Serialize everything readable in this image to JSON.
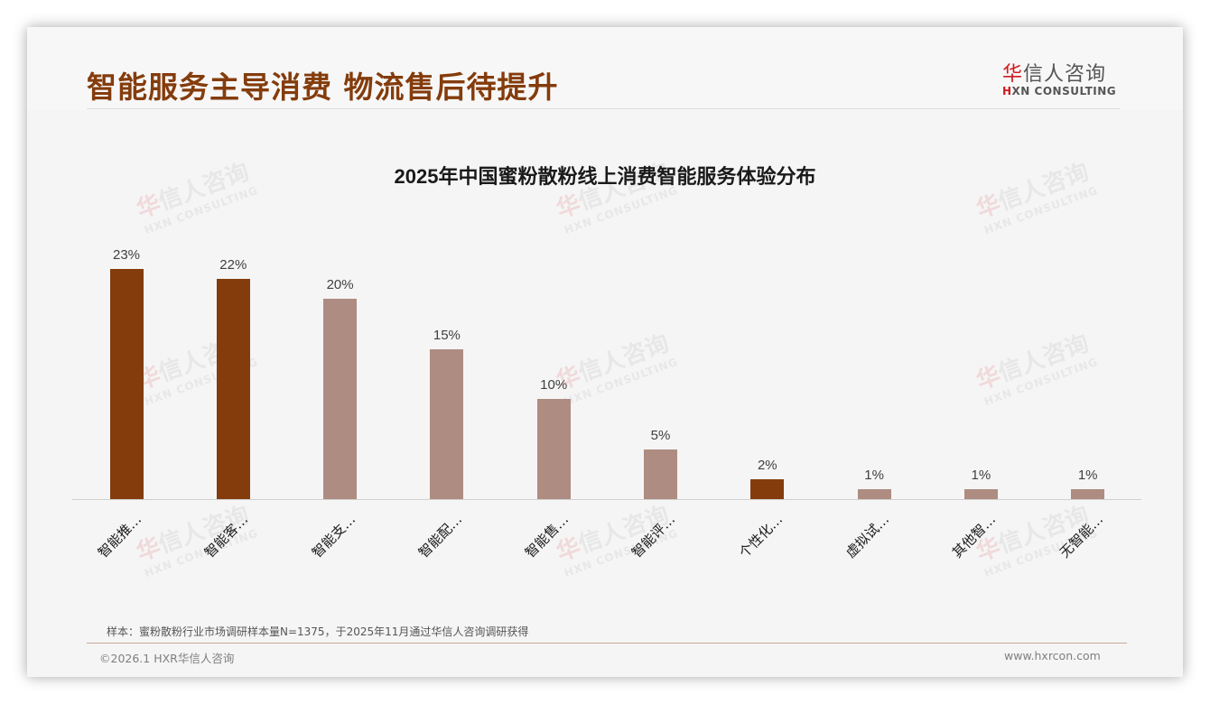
{
  "header": {
    "title": "智能服务主导消费 物流售后待提升",
    "logo_cn_first": "华",
    "logo_cn_rest": "信人咨询",
    "logo_en_first": "H",
    "logo_en_rest": "XN CONSULTING"
  },
  "colors": {
    "title": "#843c0c",
    "highlight_bar": "#843c0c",
    "normal_bar": "#ae8c82",
    "logo_red": "#d0191f"
  },
  "chart_data": {
    "type": "bar",
    "title": "2025年中国蜜粉散粉线上消费智能服务体验分布",
    "xlabel": "",
    "ylabel": "",
    "categories": [
      "智能推…",
      "智能客…",
      "智能支…",
      "智能配…",
      "智能售…",
      "智能评…",
      "个性化…",
      "虚拟试…",
      "其他智…",
      "无智能…"
    ],
    "values": [
      23,
      22,
      20,
      15,
      10,
      5,
      2,
      1,
      1,
      1
    ],
    "value_labels": [
      "23%",
      "22%",
      "20%",
      "15%",
      "10%",
      "5%",
      "2%",
      "1%",
      "1%",
      "1%"
    ],
    "highlighted": [
      true,
      true,
      false,
      false,
      false,
      false,
      true,
      false,
      false,
      false
    ],
    "ylim": [
      0,
      25
    ],
    "grid": false,
    "legend": "none"
  },
  "watermark": {
    "cn_first": "华",
    "cn_rest": "信人咨询",
    "en": "HXN CONSULTING"
  },
  "footer": {
    "note": "样本：蜜粉散粉行业市场调研样本量N=1375，于2025年11月通过华信人咨询调研获得",
    "copyright": "©2026.1 HXR华信人咨询",
    "website": "www.hxrcon.com"
  }
}
